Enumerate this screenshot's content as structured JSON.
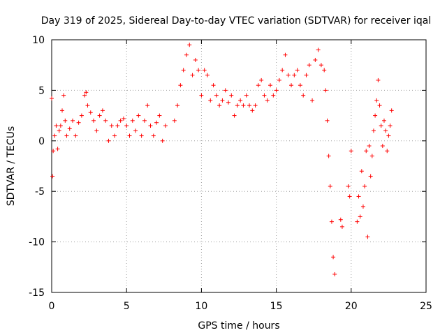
{
  "chart_data": {
    "type": "scatter",
    "title": "Day 319 of 2025, Sidereal Day-to-day VTEC variation (SDTVAR) for receiver iqal",
    "xlabel": "GPS time / hours",
    "ylabel": "SDTVAR / TECUs",
    "xlim": [
      0,
      25
    ],
    "ylim": [
      -15,
      10
    ],
    "xticks": [
      0,
      5,
      10,
      15,
      20,
      25
    ],
    "yticks": [
      -15,
      -10,
      -5,
      0,
      5,
      10
    ],
    "grid": true,
    "marker": "+",
    "series": [
      {
        "name": "SDTVAR",
        "color": "#ff0000",
        "x": [
          0.0,
          0.05,
          0.1,
          0.2,
          0.3,
          0.4,
          0.5,
          0.6,
          0.7,
          0.8,
          0.9,
          1.0,
          1.2,
          1.4,
          1.6,
          1.8,
          2.0,
          2.2,
          2.3,
          2.4,
          2.6,
          2.8,
          3.0,
          3.2,
          3.4,
          3.6,
          3.8,
          4.0,
          4.2,
          4.4,
          4.6,
          4.8,
          5.0,
          5.2,
          5.4,
          5.6,
          5.8,
          6.0,
          6.2,
          6.4,
          6.6,
          6.8,
          7.0,
          7.2,
          7.4,
          7.6,
          8.2,
          8.4,
          8.6,
          8.8,
          9.0,
          9.2,
          9.4,
          9.6,
          9.8,
          10.0,
          10.2,
          10.4,
          10.6,
          10.8,
          11.0,
          11.2,
          11.4,
          11.6,
          11.8,
          12.0,
          12.2,
          12.4,
          12.6,
          12.8,
          13.0,
          13.2,
          13.4,
          13.6,
          13.8,
          14.0,
          14.2,
          14.4,
          14.6,
          14.8,
          15.0,
          15.2,
          15.4,
          15.6,
          15.8,
          16.0,
          16.2,
          16.4,
          16.6,
          16.8,
          17.0,
          17.2,
          17.4,
          17.6,
          17.8,
          18.0,
          18.2,
          18.3,
          18.4,
          18.5,
          18.6,
          18.7,
          18.8,
          18.9,
          19.3,
          19.4,
          19.8,
          19.9,
          20.0,
          20.4,
          20.5,
          20.6,
          20.7,
          20.8,
          20.9,
          21.0,
          21.1,
          21.2,
          21.3,
          21.4,
          21.5,
          21.6,
          21.7,
          21.8,
          21.9,
          22.0,
          22.1,
          22.2,
          22.3,
          22.4,
          22.5,
          22.6,
          22.7
        ],
        "y": [
          4.2,
          -3.5,
          -1.0,
          0.5,
          1.5,
          -0.8,
          1.0,
          1.5,
          3.0,
          4.5,
          2.0,
          0.5,
          1.2,
          2.0,
          0.5,
          1.8,
          2.5,
          4.5,
          4.8,
          3.5,
          2.8,
          2.0,
          1.0,
          2.5,
          3.0,
          2.0,
          0.0,
          1.5,
          0.5,
          1.5,
          2.0,
          2.2,
          1.5,
          0.5,
          2.0,
          1.0,
          2.5,
          0.5,
          2.0,
          3.5,
          1.5,
          0.5,
          1.8,
          2.5,
          0.0,
          1.5,
          2.0,
          3.5,
          5.5,
          7.0,
          8.5,
          9.5,
          6.5,
          8.0,
          7.0,
          4.5,
          7.0,
          6.5,
          4.0,
          5.5,
          4.5,
          3.5,
          4.0,
          5.0,
          3.8,
          4.5,
          2.5,
          3.5,
          4.0,
          3.5,
          4.5,
          3.5,
          3.0,
          3.5,
          5.5,
          6.0,
          4.5,
          4.0,
          5.5,
          4.5,
          5.0,
          6.0,
          7.0,
          8.5,
          6.5,
          5.5,
          6.5,
          7.0,
          5.5,
          4.5,
          6.5,
          7.5,
          4.0,
          8.0,
          9.0,
          7.5,
          7.0,
          5.0,
          2.0,
          -1.5,
          -4.5,
          -8.0,
          -11.5,
          -13.2,
          -7.8,
          -8.5,
          -4.5,
          -5.5,
          -1.0,
          -8.0,
          -5.5,
          -7.5,
          -3.0,
          -6.5,
          -4.5,
          -1.0,
          -9.5,
          -0.5,
          -3.5,
          -1.5,
          1.0,
          2.5,
          4.0,
          6.0,
          3.5,
          1.5,
          -0.5,
          2.0,
          1.0,
          -1.0,
          0.5,
          1.5,
          3.0
        ]
      }
    ]
  }
}
